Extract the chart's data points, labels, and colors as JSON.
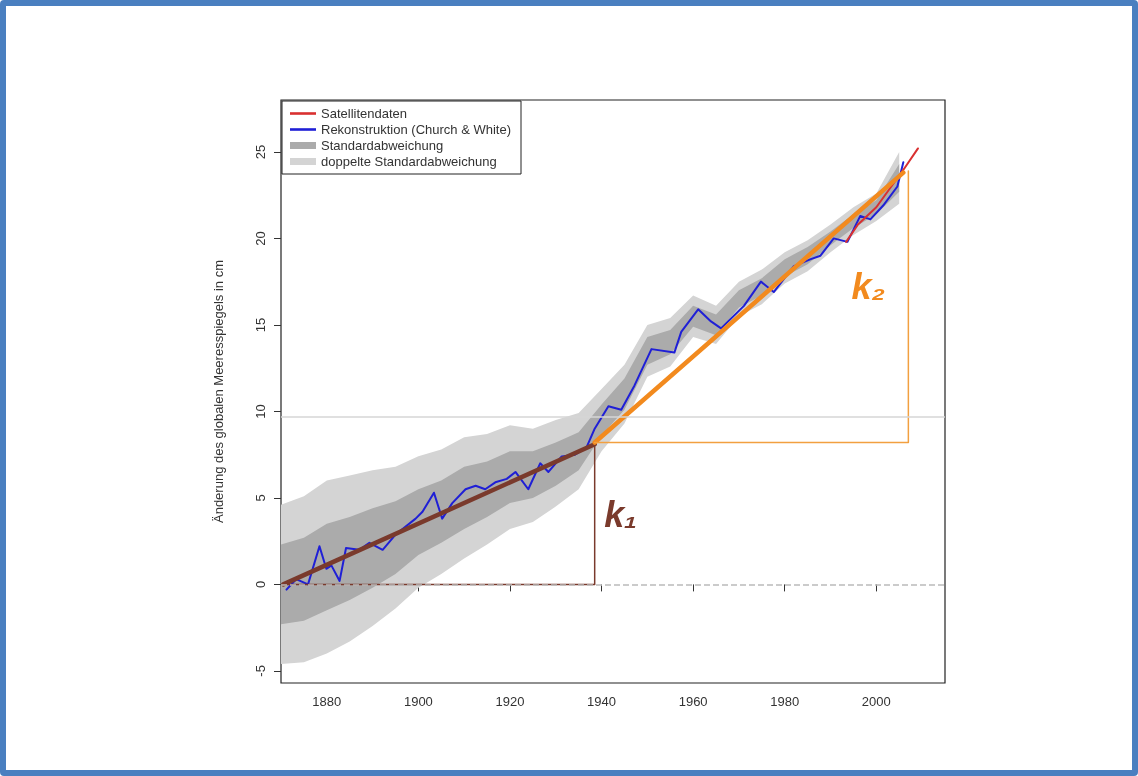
{
  "chart_data": {
    "type": "line",
    "ylabel": "Änderung des globalen Meeresspiegels in cm",
    "xlim": [
      1870,
      2015
    ],
    "xticks": [
      1880,
      1900,
      1920,
      1940,
      1960,
      1980,
      2000
    ],
    "ylim": [
      -5.7,
      28
    ],
    "yticks": [
      -5,
      0,
      5,
      10,
      15,
      20,
      25
    ],
    "grid": false,
    "legend": "top left",
    "series": [
      {
        "name": "doppelte Standardabweichung",
        "type": "area",
        "color": "#d4d4d4",
        "x": [
          1870,
          1875,
          1880,
          1885,
          1890,
          1895,
          1900,
          1905,
          1910,
          1915,
          1920,
          1925,
          1930,
          1935,
          1940,
          1945,
          1950,
          1955,
          1960,
          1965,
          1970,
          1975,
          1980,
          1985,
          1990,
          1995,
          2000,
          2005
        ],
        "values": [
          null,
          null,
          null,
          null,
          null,
          null,
          null,
          null,
          null,
          null,
          null,
          null,
          null,
          null,
          null,
          null,
          null,
          null,
          null,
          null,
          null,
          null,
          null,
          null,
          null,
          null,
          null,
          null
        ],
        "lower": [
          -4.6,
          -4.5,
          -4,
          -3.3,
          -2.4,
          -1.4,
          -0.2,
          0.6,
          1.5,
          2.3,
          3.2,
          3.6,
          4.5,
          5.5,
          7.7,
          9.3,
          12,
          12.6,
          14.3,
          13.9,
          15.5,
          16.2,
          17.4,
          18.1,
          19.2,
          20.2,
          21,
          22
        ],
        "upper": [
          4.6,
          5.1,
          6,
          6.3,
          6.6,
          6.8,
          7.4,
          7.8,
          8.5,
          8.7,
          9.2,
          9,
          9.5,
          9.9,
          11.3,
          12.7,
          15,
          15.4,
          16.7,
          16.1,
          17.5,
          18.2,
          19.2,
          19.9,
          20.8,
          21.8,
          22.6,
          25
        ]
      },
      {
        "name": "Standardabweichung",
        "type": "area",
        "color": "#ababab",
        "x": [
          1870,
          1875,
          1880,
          1885,
          1890,
          1895,
          1900,
          1905,
          1910,
          1915,
          1920,
          1925,
          1930,
          1935,
          1940,
          1945,
          1950,
          1955,
          1960,
          1965,
          1970,
          1975,
          1980,
          1985,
          1990,
          1995,
          2000,
          2005
        ],
        "values": [
          null,
          null,
          null,
          null,
          null,
          null,
          null,
          null,
          null,
          null,
          null,
          null,
          null,
          null,
          null,
          null,
          null,
          null,
          null,
          null,
          null,
          null,
          null,
          null,
          null,
          null,
          null,
          null
        ],
        "lower": [
          -2.3,
          -2.1,
          -1.5,
          -0.9,
          -0.2,
          0.6,
          1.7,
          2.4,
          3.2,
          3.9,
          4.7,
          5,
          5.7,
          6.6,
          8.6,
          10.1,
          12.7,
          13.3,
          14.9,
          14.4,
          16,
          16.7,
          17.8,
          18.5,
          19.6,
          20.6,
          21.4,
          22.7
        ],
        "upper": [
          2.3,
          2.7,
          3.5,
          3.9,
          4.4,
          4.8,
          5.5,
          6,
          6.8,
          7.1,
          7.7,
          7.7,
          8.2,
          8.8,
          10.4,
          11.9,
          14.3,
          14.7,
          16.1,
          15.6,
          17,
          17.7,
          18.8,
          19.5,
          20.4,
          21.4,
          22.2,
          24.3
        ]
      },
      {
        "name": "Rekonstruktion (Church & White)",
        "color": "#1f1fd6",
        "x": [
          1871.2,
          1873.3,
          1875.9,
          1878.4,
          1879.9,
          1881,
          1882.8,
          1884.2,
          1887.1,
          1889.3,
          1892.2,
          1895.1,
          1899.4,
          1900.9,
          1903.4,
          1905.2,
          1907.4,
          1910.3,
          1912.5,
          1914.6,
          1916.8,
          1919.3,
          1921.2,
          1924,
          1926.6,
          1928.4,
          1931.3,
          1934.2,
          1936.7,
          1938.5,
          1941.5,
          1944.3,
          1947.2,
          1950.9,
          1955.9,
          1957.4,
          1961.1,
          1963.9,
          1966.1,
          1971.1,
          1974.8,
          1977.6,
          1982,
          1985.7,
          1987.8,
          1990.7,
          1993.7,
          1996.5,
          1998.7,
          2001.5,
          2004.6,
          2005.9
        ],
        "values": [
          -0.3,
          0.3,
          0,
          2.2,
          0.9,
          1.1,
          0.2,
          2.1,
          2,
          2.4,
          2,
          2.9,
          3.8,
          4.2,
          5.3,
          3.8,
          4.7,
          5.5,
          5.7,
          5.5,
          5.9,
          6.1,
          6.5,
          5.5,
          7,
          6.5,
          7.4,
          7.5,
          7.9,
          9,
          10.3,
          10.1,
          11.5,
          13.6,
          13.4,
          14.6,
          15.9,
          15.2,
          14.8,
          16.1,
          17.5,
          16.9,
          18.4,
          18.8,
          19,
          20,
          19.8,
          21.3,
          21.1,
          21.9,
          23,
          24.4
        ]
      },
      {
        "name": "Satellitendaten",
        "color": "#d93030",
        "x": [
          1993.4,
          1996,
          2000,
          2003,
          2006,
          2009.1
        ],
        "values": [
          19.8,
          20.8,
          21.8,
          22.9,
          24,
          25.2
        ]
      },
      {
        "color": "#7a3a2c",
        "x": [
          1870.5,
          1938.5
        ],
        "values": [
          0,
          8.1
        ]
      },
      {
        "color": "#7a3a2c",
        "x": [
          1870.5,
          1938.5,
          1938.5
        ],
        "values": [
          0,
          0,
          8.1
        ]
      },
      {
        "color": "#f28a1e",
        "x": [
          1938.5,
          2005.9
        ],
        "values": [
          8.2,
          23.8
        ]
      },
      {
        "color": "#f2a040",
        "x": [
          1938.5,
          2007,
          2007
        ],
        "values": [
          8.2,
          8.2,
          23.9
        ]
      }
    ],
    "ref_lines": [
      {
        "axis": "y",
        "value": 0,
        "color": "#bbbbbb",
        "line_style": "dashed"
      },
      {
        "axis": "y",
        "value": 9.7,
        "color": "#d6d6d6",
        "line_style": "solid"
      }
    ],
    "annotations": [
      "k₁",
      "k₂"
    ]
  }
}
